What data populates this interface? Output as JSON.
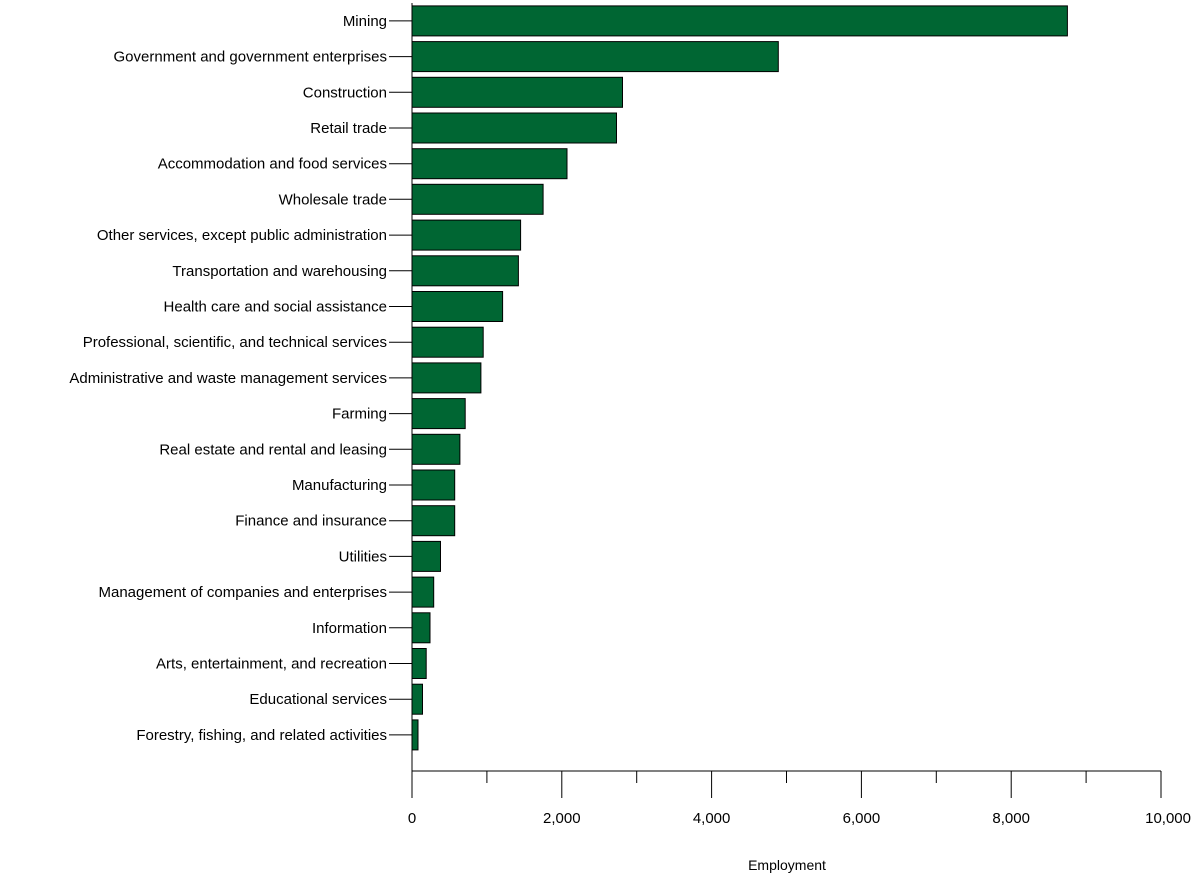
{
  "chart_data": {
    "type": "bar",
    "orientation": "horizontal",
    "categories": [
      "Mining",
      "Government and government enterprises",
      "Construction",
      "Retail trade",
      "Accommodation and food services",
      "Wholesale trade",
      "Other services, except public administration",
      "Transportation and warehousing",
      "Health care and social assistance",
      "Professional, scientific, and technical services",
      "Administrative and waste management services",
      "Farming",
      "Real estate and rental and leasing",
      "Manufacturing",
      "Finance and insurance",
      "Utilities",
      "Management of companies and enterprises",
      "Information",
      "Arts, entertainment, and recreation",
      "Educational services",
      "Forestry, fishing, and related activities"
    ],
    "values": [
      8750,
      4890,
      2810,
      2730,
      2070,
      1750,
      1450,
      1420,
      1210,
      950,
      920,
      710,
      640,
      570,
      570,
      380,
      290,
      240,
      190,
      140,
      80
    ],
    "xlabel": "Employment",
    "ylabel": "",
    "xlim": [
      0,
      10000
    ],
    "xticks": [
      0,
      2000,
      4000,
      6000,
      8000,
      10000
    ],
    "xtick_labels": [
      "0",
      "2,000",
      "4,000",
      "6,000",
      "8,000",
      "10,000"
    ],
    "bar_color": "#006633",
    "grid": false,
    "legend": "none"
  }
}
